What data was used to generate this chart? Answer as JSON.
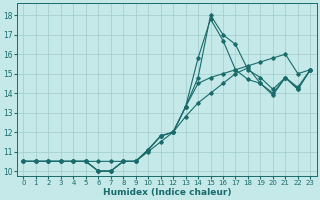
{
  "xlabel": "Humidex (Indice chaleur)",
  "background_color": "#c5e8e8",
  "grid_color": "#a0cccc",
  "line_color": "#1a6b6b",
  "xlim": [
    -0.5,
    23.5
  ],
  "ylim": [
    9.75,
    18.6
  ],
  "xticks": [
    0,
    1,
    2,
    3,
    4,
    5,
    6,
    7,
    8,
    9,
    10,
    11,
    12,
    13,
    14,
    15,
    16,
    17,
    18,
    19,
    20,
    21,
    22,
    23
  ],
  "yticks": [
    10,
    11,
    12,
    13,
    14,
    15,
    16,
    17,
    18
  ],
  "series": [
    [
      10.5,
      10.5,
      10.5,
      10.5,
      10.5,
      10.5,
      10.5,
      10.5,
      10.5,
      10.5,
      11.0,
      11.5,
      12.0,
      12.8,
      13.5,
      14.0,
      14.5,
      15.0,
      15.3,
      14.5,
      14.0,
      14.8,
      14.2,
      15.2
    ],
    [
      10.5,
      10.5,
      10.5,
      10.5,
      10.5,
      10.5,
      10.0,
      10.0,
      10.5,
      10.5,
      11.1,
      11.8,
      12.0,
      13.3,
      15.8,
      17.8,
      16.7,
      15.2,
      14.7,
      14.5,
      13.9,
      14.8,
      14.2,
      15.2
    ],
    [
      10.5,
      10.5,
      10.5,
      10.5,
      10.5,
      10.5,
      10.0,
      10.0,
      10.5,
      10.5,
      11.1,
      11.8,
      12.0,
      13.3,
      14.8,
      18.0,
      17.0,
      16.5,
      15.2,
      14.8,
      14.2,
      14.8,
      14.3,
      15.2
    ],
    [
      10.5,
      10.5,
      10.5,
      10.5,
      10.5,
      10.5,
      10.0,
      10.0,
      10.5,
      10.5,
      11.1,
      11.8,
      12.0,
      13.3,
      14.5,
      14.8,
      15.0,
      15.2,
      15.4,
      15.6,
      15.8,
      16.0,
      15.0,
      15.2
    ]
  ]
}
